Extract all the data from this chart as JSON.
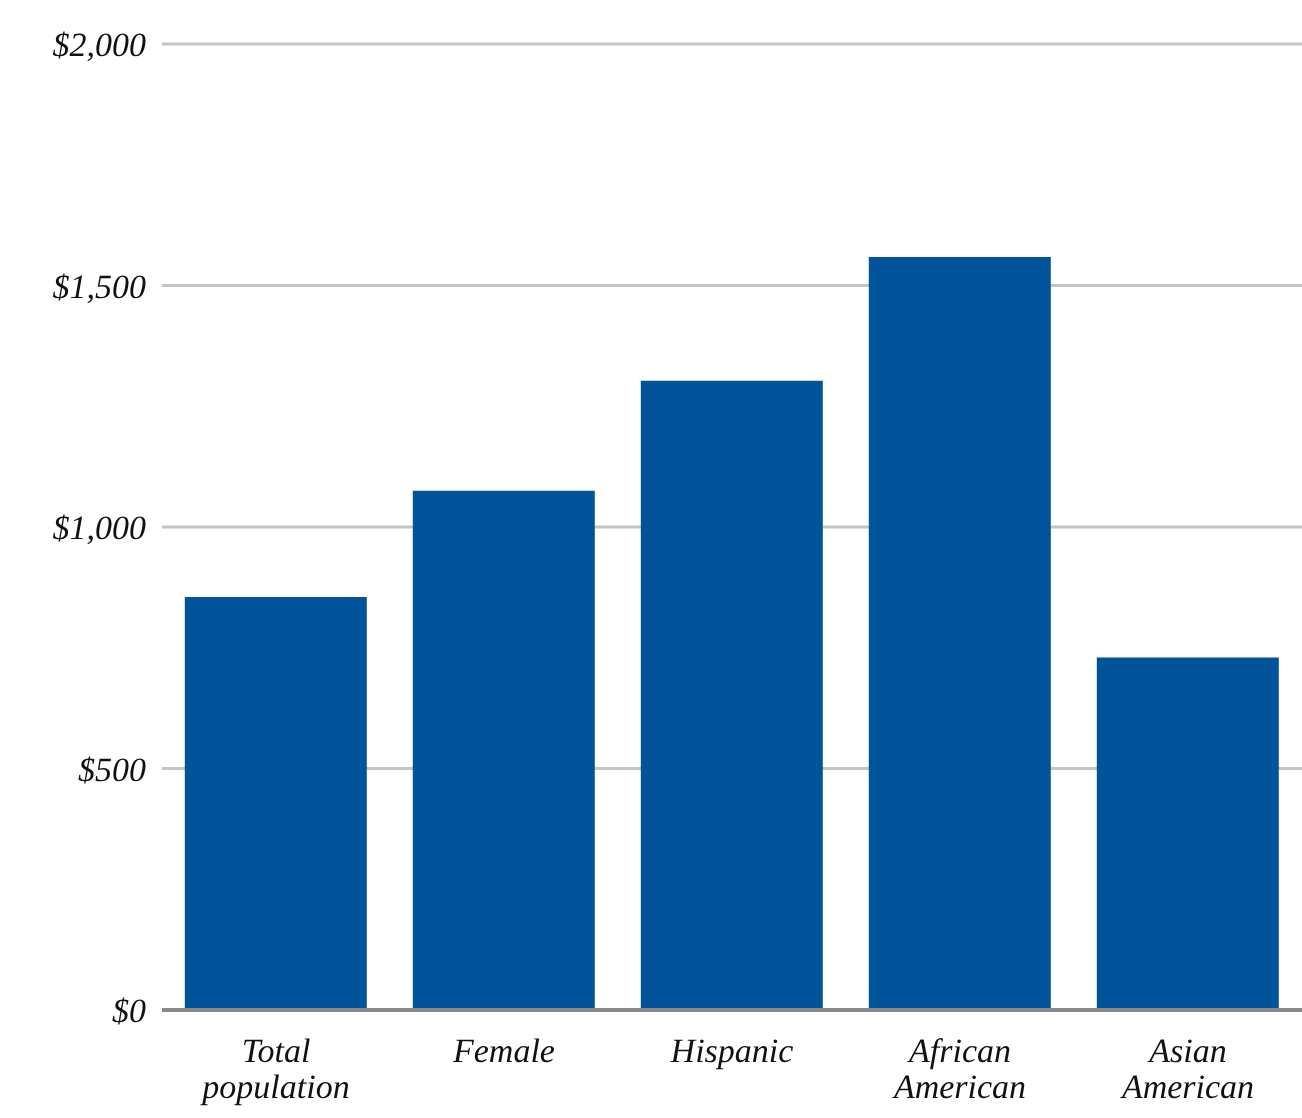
{
  "chart_data": {
    "type": "bar",
    "categories": [
      "Total population",
      "Female",
      "Hispanic",
      "African American",
      "Asian American"
    ],
    "values": [
      855,
      1075,
      1303,
      1559,
      730
    ],
    "color": "#01539a",
    "ylim": [
      0,
      2000
    ],
    "yticks": [
      {
        "value": 0,
        "label": "$0"
      },
      {
        "value": 500,
        "label": "$500"
      },
      {
        "value": 1000,
        "label": "$1,000"
      },
      {
        "value": 1500,
        "label": "$1,500"
      },
      {
        "value": 2000,
        "label": "$2,000"
      }
    ],
    "grid": "y"
  }
}
